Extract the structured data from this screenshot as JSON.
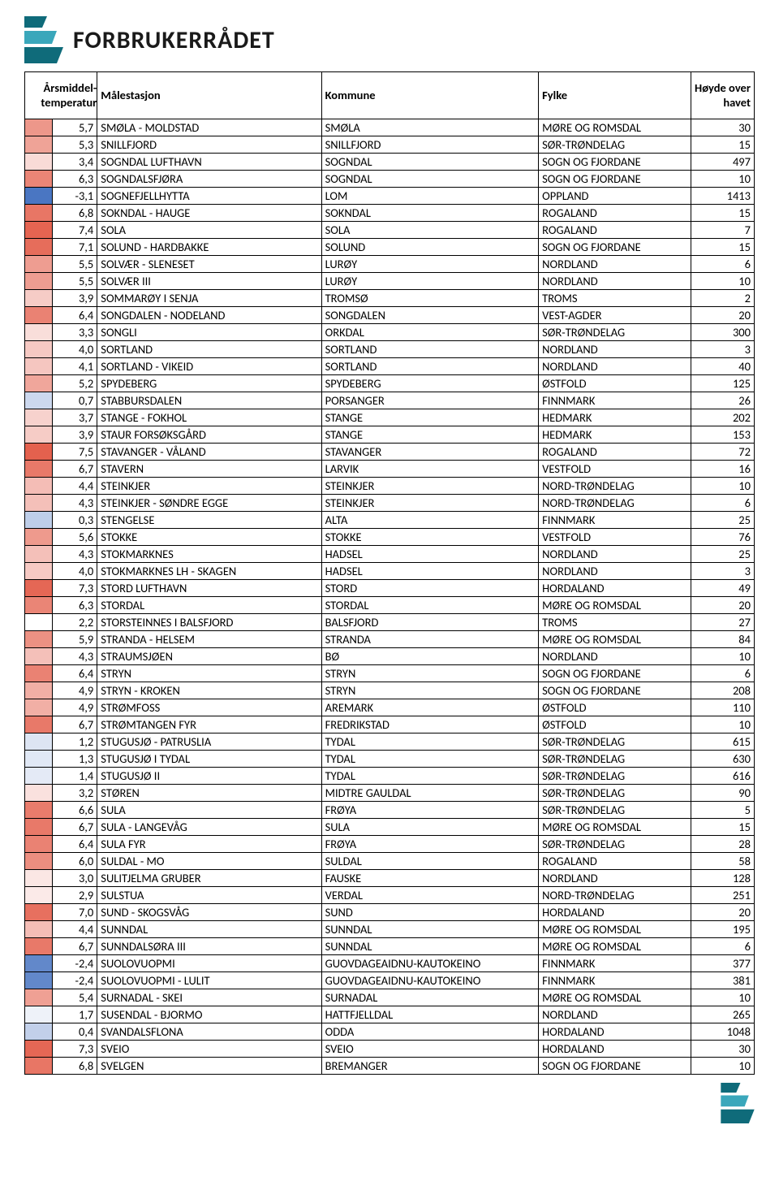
{
  "brand": {
    "name": "FORBRUKERRÅDET"
  },
  "columns": {
    "temp": "Årsmiddel-temperatur",
    "station": "Målestasjon",
    "kommune": "Kommune",
    "fylke": "Fylke",
    "height": "Høyde over havet"
  },
  "temp_scale": {
    "min": -3.1,
    "max": 7.5,
    "low_color": "#4a76c2",
    "mid_color": "#ffffff",
    "high_color": "#e4614e"
  },
  "rows": [
    {
      "t": "5,7",
      "stn": "SMØLA - MOLDSTAD",
      "kom": "SMØLA",
      "fyl": "MØRE OG ROMSDAL",
      "h": "30",
      "tv": 5.7
    },
    {
      "t": "5,3",
      "stn": "SNILLFJORD",
      "kom": "SNILLFJORD",
      "fyl": "SØR-TRØNDELAG",
      "h": "15",
      "tv": 5.3
    },
    {
      "t": "3,4",
      "stn": "SOGNDAL LUFTHAVN",
      "kom": "SOGNDAL",
      "fyl": "SOGN OG FJORDANE",
      "h": "497",
      "tv": 3.4
    },
    {
      "t": "6,3",
      "stn": "SOGNDALSFJØRA",
      "kom": "SOGNDAL",
      "fyl": "SOGN OG FJORDANE",
      "h": "10",
      "tv": 6.3
    },
    {
      "t": "-3,1",
      "stn": "SOGNEFJELLHYTTA",
      "kom": "LOM",
      "fyl": "OPPLAND",
      "h": "1413",
      "tv": -3.1
    },
    {
      "t": "6,8",
      "stn": "SOKNDAL - HAUGE",
      "kom": "SOKNDAL",
      "fyl": "ROGALAND",
      "h": "15",
      "tv": 6.8
    },
    {
      "t": "7,4",
      "stn": "SOLA",
      "kom": "SOLA",
      "fyl": "ROGALAND",
      "h": "7",
      "tv": 7.4
    },
    {
      "t": "7,1",
      "stn": "SOLUND - HARDBAKKE",
      "kom": "SOLUND",
      "fyl": "SOGN OG FJORDANE",
      "h": "15",
      "tv": 7.1
    },
    {
      "t": "5,5",
      "stn": "SOLVÆR - SLENESET",
      "kom": "LURØY",
      "fyl": "NORDLAND",
      "h": "6",
      "tv": 5.5
    },
    {
      "t": "5,5",
      "stn": "SOLVÆR III",
      "kom": "LURØY",
      "fyl": "NORDLAND",
      "h": "10",
      "tv": 5.5
    },
    {
      "t": "3,9",
      "stn": "SOMMARØY I SENJA",
      "kom": "TROMSØ",
      "fyl": "TROMS",
      "h": "2",
      "tv": 3.9
    },
    {
      "t": "6,4",
      "stn": "SONGDALEN - NODELAND",
      "kom": "SONGDALEN",
      "fyl": "VEST-AGDER",
      "h": "20",
      "tv": 6.4
    },
    {
      "t": "3,3",
      "stn": "SONGLI",
      "kom": "ORKDAL",
      "fyl": "SØR-TRØNDELAG",
      "h": "300",
      "tv": 3.3
    },
    {
      "t": "4,0",
      "stn": "SORTLAND",
      "kom": "SORTLAND",
      "fyl": "NORDLAND",
      "h": "3",
      "tv": 4.0
    },
    {
      "t": "4,1",
      "stn": "SORTLAND - VIKEID",
      "kom": "SORTLAND",
      "fyl": "NORDLAND",
      "h": "40",
      "tv": 4.1
    },
    {
      "t": "5,2",
      "stn": "SPYDEBERG",
      "kom": "SPYDEBERG",
      "fyl": "ØSTFOLD",
      "h": "125",
      "tv": 5.2
    },
    {
      "t": "0,7",
      "stn": "STABBURSDALEN",
      "kom": "PORSANGER",
      "fyl": "FINNMARK",
      "h": "26",
      "tv": 0.7
    },
    {
      "t": "3,7",
      "stn": "STANGE - FOKHOL",
      "kom": "STANGE",
      "fyl": "HEDMARK",
      "h": "202",
      "tv": 3.7
    },
    {
      "t": "3,9",
      "stn": "STAUR FORSØKSGÅRD",
      "kom": "STANGE",
      "fyl": "HEDMARK",
      "h": "153",
      "tv": 3.9
    },
    {
      "t": "7,5",
      "stn": "STAVANGER - VÅLAND",
      "kom": "STAVANGER",
      "fyl": "ROGALAND",
      "h": "72",
      "tv": 7.5
    },
    {
      "t": "6,7",
      "stn": "STAVERN",
      "kom": "LARVIK",
      "fyl": "VESTFOLD",
      "h": "16",
      "tv": 6.7
    },
    {
      "t": "4,4",
      "stn": "STEINKJER",
      "kom": "STEINKJER",
      "fyl": "NORD-TRØNDELAG",
      "h": "10",
      "tv": 4.4
    },
    {
      "t": "4,3",
      "stn": "STEINKJER - SØNDRE EGGE",
      "kom": "STEINKJER",
      "fyl": "NORD-TRØNDELAG",
      "h": "6",
      "tv": 4.3
    },
    {
      "t": "0,3",
      "stn": "STENGELSE",
      "kom": "ALTA",
      "fyl": "FINNMARK",
      "h": "25",
      "tv": 0.3
    },
    {
      "t": "5,6",
      "stn": "STOKKE",
      "kom": "STOKKE",
      "fyl": "VESTFOLD",
      "h": "76",
      "tv": 5.6
    },
    {
      "t": "4,3",
      "stn": "STOKMARKNES",
      "kom": "HADSEL",
      "fyl": "NORDLAND",
      "h": "25",
      "tv": 4.3
    },
    {
      "t": "4,0",
      "stn": "STOKMARKNES LH - SKAGEN",
      "kom": "HADSEL",
      "fyl": "NORDLAND",
      "h": "3",
      "tv": 4.0
    },
    {
      "t": "7,3",
      "stn": "STORD LUFTHAVN",
      "kom": "STORD",
      "fyl": "HORDALAND",
      "h": "49",
      "tv": 7.3
    },
    {
      "t": "6,3",
      "stn": "STORDAL",
      "kom": "STORDAL",
      "fyl": "MØRE OG ROMSDAL",
      "h": "20",
      "tv": 6.3
    },
    {
      "t": "2,2",
      "stn": "STORSTEINNES I BALSFJORD",
      "kom": "BALSFJORD",
      "fyl": "TROMS",
      "h": "27",
      "tv": 2.2
    },
    {
      "t": "5,9",
      "stn": "STRANDA - HELSEM",
      "kom": "STRANDA",
      "fyl": "MØRE OG ROMSDAL",
      "h": "84",
      "tv": 5.9
    },
    {
      "t": "4,3",
      "stn": "STRAUMSJØEN",
      "kom": "BØ",
      "fyl": "NORDLAND",
      "h": "10",
      "tv": 4.3
    },
    {
      "t": "6,4",
      "stn": "STRYN",
      "kom": "STRYN",
      "fyl": "SOGN OG FJORDANE",
      "h": "6",
      "tv": 6.4
    },
    {
      "t": "4,9",
      "stn": "STRYN - KROKEN",
      "kom": "STRYN",
      "fyl": "SOGN OG FJORDANE",
      "h": "208",
      "tv": 4.9
    },
    {
      "t": "4,9",
      "stn": "STRØMFOSS",
      "kom": "AREMARK",
      "fyl": "ØSTFOLD",
      "h": "110",
      "tv": 4.9
    },
    {
      "t": "6,7",
      "stn": "STRØMTANGEN FYR",
      "kom": "FREDRIKSTAD",
      "fyl": "ØSTFOLD",
      "h": "10",
      "tv": 6.7
    },
    {
      "t": "1,2",
      "stn": "STUGUSJØ - PATRUSLIA",
      "kom": "TYDAL",
      "fyl": "SØR-TRØNDELAG",
      "h": "615",
      "tv": 1.2
    },
    {
      "t": "1,3",
      "stn": "STUGUSJØ I TYDAL",
      "kom": "TYDAL",
      "fyl": "SØR-TRØNDELAG",
      "h": "630",
      "tv": 1.3
    },
    {
      "t": "1,4",
      "stn": "STUGUSJØ II",
      "kom": "TYDAL",
      "fyl": "SØR-TRØNDELAG",
      "h": "616",
      "tv": 1.4
    },
    {
      "t": "3,2",
      "stn": "STØREN",
      "kom": "MIDTRE GAULDAL",
      "fyl": "SØR-TRØNDELAG",
      "h": "90",
      "tv": 3.2
    },
    {
      "t": "6,6",
      "stn": "SULA",
      "kom": "FRØYA",
      "fyl": "SØR-TRØNDELAG",
      "h": "5",
      "tv": 6.6
    },
    {
      "t": "6,7",
      "stn": "SULA - LANGEVÅG",
      "kom": "SULA",
      "fyl": "MØRE OG ROMSDAL",
      "h": "15",
      "tv": 6.7
    },
    {
      "t": "6,4",
      "stn": "SULA FYR",
      "kom": "FRØYA",
      "fyl": "SØR-TRØNDELAG",
      "h": "28",
      "tv": 6.4
    },
    {
      "t": "6,0",
      "stn": "SULDAL - MO",
      "kom": "SULDAL",
      "fyl": "ROGALAND",
      "h": "58",
      "tv": 6.0
    },
    {
      "t": "3,0",
      "stn": "SULITJELMA GRUBER",
      "kom": "FAUSKE",
      "fyl": "NORDLAND",
      "h": "128",
      "tv": 3.0
    },
    {
      "t": "2,9",
      "stn": "SULSTUA",
      "kom": "VERDAL",
      "fyl": "NORD-TRØNDELAG",
      "h": "251",
      "tv": 2.9
    },
    {
      "t": "7,0",
      "stn": "SUND - SKOGSVÅG",
      "kom": "SUND",
      "fyl": "HORDALAND",
      "h": "20",
      "tv": 7.0
    },
    {
      "t": "4,4",
      "stn": "SUNNDAL",
      "kom": "SUNNDAL",
      "fyl": "MØRE OG ROMSDAL",
      "h": "195",
      "tv": 4.4
    },
    {
      "t": "6,7",
      "stn": "SUNNDALSØRA III",
      "kom": "SUNNDAL",
      "fyl": "MØRE OG ROMSDAL",
      "h": "6",
      "tv": 6.7
    },
    {
      "t": "-2,4",
      "stn": "SUOLOVUOPMI",
      "kom": "GUOVDAGEAIDNU-KAUTOKEINO",
      "fyl": "FINNMARK",
      "h": "377",
      "tv": -2.4
    },
    {
      "t": "-2,4",
      "stn": "SUOLOVUOPMI - LULIT",
      "kom": "GUOVDAGEAIDNU-KAUTOKEINO",
      "fyl": "FINNMARK",
      "h": "381",
      "tv": -2.4
    },
    {
      "t": "5,4",
      "stn": "SURNADAL - SKEI",
      "kom": "SURNADAL",
      "fyl": "MØRE OG ROMSDAL",
      "h": "10",
      "tv": 5.4
    },
    {
      "t": "1,7",
      "stn": "SUSENDAL - BJORMO",
      "kom": "HATTFJELLDAL",
      "fyl": "NORDLAND",
      "h": "265",
      "tv": 1.7
    },
    {
      "t": "0,4",
      "stn": "SVANDALSFLONA",
      "kom": "ODDA",
      "fyl": "HORDALAND",
      "h": "1048",
      "tv": 0.4
    },
    {
      "t": "7,3",
      "stn": "SVEIO",
      "kom": "SVEIO",
      "fyl": "HORDALAND",
      "h": "30",
      "tv": 7.3
    },
    {
      "t": "6,8",
      "stn": "SVELGEN",
      "kom": "BREMANGER",
      "fyl": "SOGN OG FJORDANE",
      "h": "10",
      "tv": 6.8
    }
  ]
}
